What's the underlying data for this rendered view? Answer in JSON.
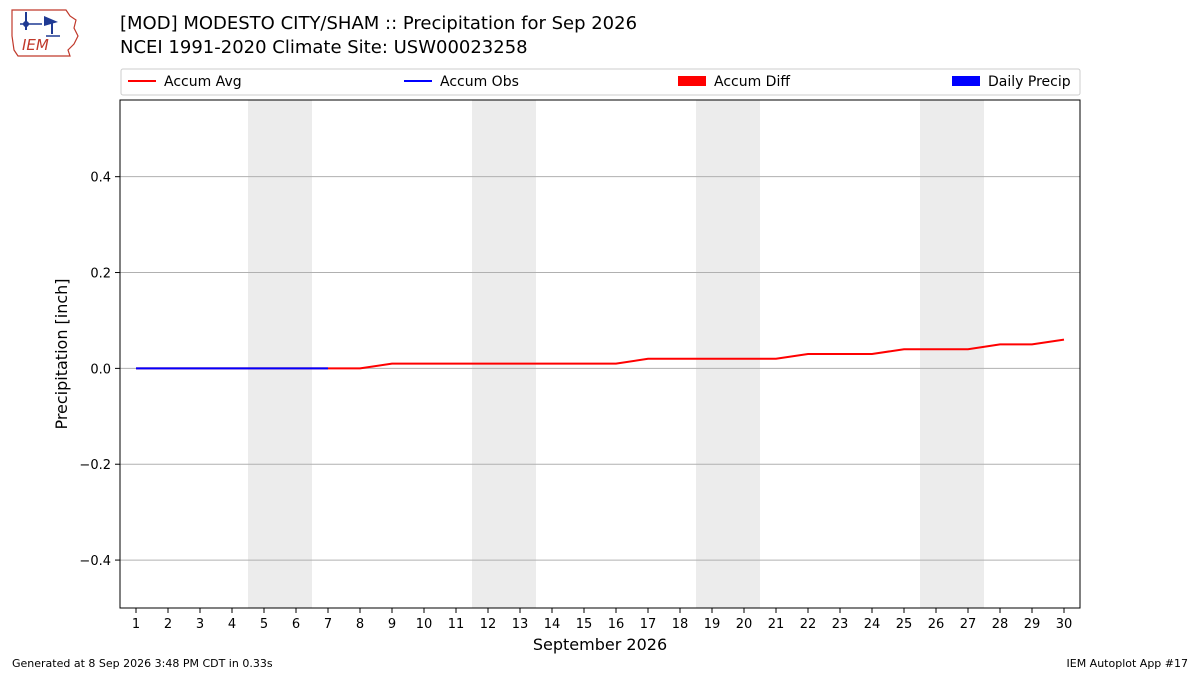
{
  "header": {
    "title_line1": "[MOD] MODESTO CITY/SHAM :: Precipitation for Sep 2026",
    "title_line2": "NCEI 1991-2020 Climate Site: USW00023258",
    "logo_text": "IEM"
  },
  "footer": {
    "generated": "Generated at 8 Sep 2026 3:48 PM CDT in 0.33s",
    "app": "IEM Autoplot App #17"
  },
  "chart_data": {
    "type": "line",
    "xlabel": "September 2026",
    "ylabel": "Precipitation [inch]",
    "xlim": [
      0.5,
      30.5
    ],
    "ylim": [
      -0.5,
      0.56
    ],
    "x_ticks": [
      1,
      2,
      3,
      4,
      5,
      6,
      7,
      8,
      9,
      10,
      11,
      12,
      13,
      14,
      15,
      16,
      17,
      18,
      19,
      20,
      21,
      22,
      23,
      24,
      25,
      26,
      27,
      28,
      29,
      30
    ],
    "y_ticks": [
      -0.4,
      -0.2,
      0.0,
      0.2,
      0.4
    ],
    "y_tick_labels": [
      "−0.4",
      "−0.2",
      "0.0",
      "0.2",
      "0.4"
    ],
    "grid": "horizontal",
    "weekend_bands": [
      [
        4.5,
        6.5
      ],
      [
        11.5,
        13.5
      ],
      [
        18.5,
        20.5
      ],
      [
        25.5,
        27.5
      ]
    ],
    "legend": {
      "placement": "top",
      "entries": [
        {
          "label": "Accum Avg",
          "kind": "line",
          "color": "#ff0000"
        },
        {
          "label": "Accum Obs",
          "kind": "line",
          "color": "#0000ff"
        },
        {
          "label": "Accum Diff",
          "kind": "bar",
          "color": "#ff0000"
        },
        {
          "label": "Daily Precip",
          "kind": "bar",
          "color": "#0000ff"
        }
      ]
    },
    "series": [
      {
        "name": "Accum Avg",
        "color": "#ff0000",
        "x": [
          1,
          2,
          3,
          4,
          5,
          6,
          7,
          8,
          9,
          10,
          11,
          12,
          13,
          14,
          15,
          16,
          17,
          18,
          19,
          20,
          21,
          22,
          23,
          24,
          25,
          26,
          27,
          28,
          29,
          30
        ],
        "values": [
          0,
          0,
          0,
          0,
          0,
          0,
          0,
          0,
          0.01,
          0.01,
          0.01,
          0.01,
          0.01,
          0.01,
          0.01,
          0.01,
          0.02,
          0.02,
          0.02,
          0.02,
          0.02,
          0.03,
          0.03,
          0.03,
          0.04,
          0.04,
          0.04,
          0.05,
          0.05,
          0.06
        ]
      },
      {
        "name": "Accum Obs",
        "color": "#0000ff",
        "x": [
          1,
          2,
          3,
          4,
          5,
          6,
          7
        ],
        "values": [
          0,
          0,
          0,
          0,
          0,
          0,
          0
        ]
      }
    ],
    "colors": {
      "band": "#ececec",
      "grid": "#b0b0b0"
    }
  }
}
